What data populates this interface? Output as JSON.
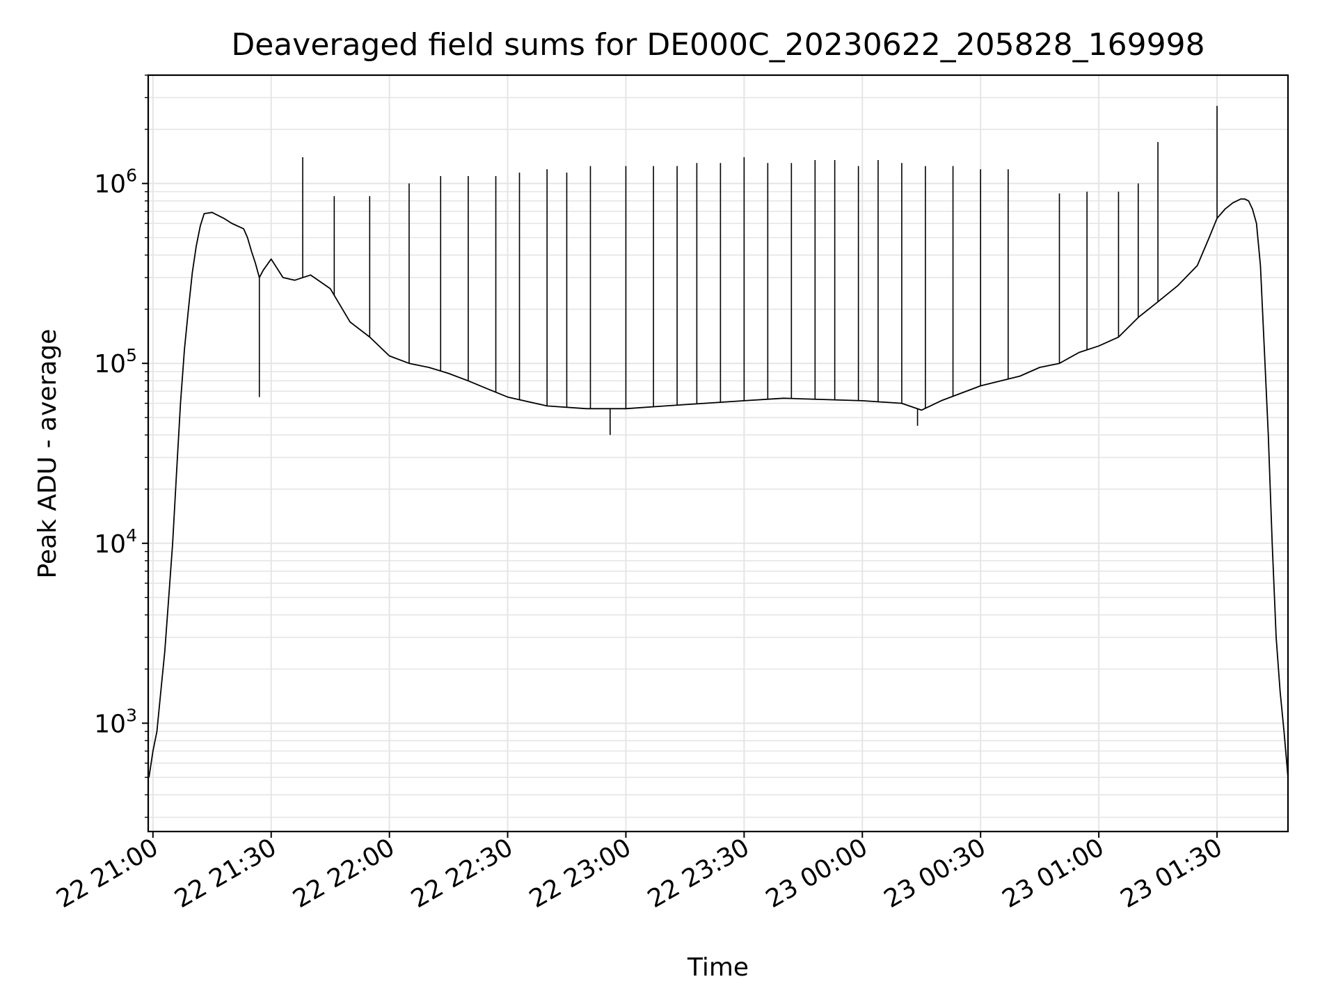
{
  "chart_data": {
    "type": "line",
    "title": "Deaveraged field sums for DE000C_20230622_205828_169998",
    "xlabel": "Time",
    "ylabel": "Peak ADU - average",
    "y_scale": "log",
    "ylim": [
      250,
      4000000
    ],
    "xlim": [
      "2023-06-22 20:58:48",
      "2023-06-23 01:48:00"
    ],
    "grid": true,
    "line_color": "#000000",
    "grid_color": "#e5e5e5",
    "x_ticks": [
      {
        "label": "22 21:00",
        "value": "2023-06-22 21:00"
      },
      {
        "label": "22 21:30",
        "value": "2023-06-22 21:30"
      },
      {
        "label": "22 22:00",
        "value": "2023-06-22 22:00"
      },
      {
        "label": "22 22:30",
        "value": "2023-06-22 22:30"
      },
      {
        "label": "22 23:00",
        "value": "2023-06-22 23:00"
      },
      {
        "label": "22 23:30",
        "value": "2023-06-22 23:30"
      },
      {
        "label": "23 00:00",
        "value": "2023-06-23 00:00"
      },
      {
        "label": "23 00:30",
        "value": "2023-06-23 00:30"
      },
      {
        "label": "23 01:00",
        "value": "2023-06-23 01:00"
      },
      {
        "label": "23 01:30",
        "value": "2023-06-23 01:30"
      }
    ],
    "y_ticks": [
      {
        "base": "10",
        "exp": "3",
        "value": 1000
      },
      {
        "base": "10",
        "exp": "4",
        "value": 10000
      },
      {
        "base": "10",
        "exp": "5",
        "value": 100000
      },
      {
        "base": "10",
        "exp": "6",
        "value": 1000000
      }
    ],
    "series": [
      {
        "x": [
          "2023-06-22 20:59",
          "2023-06-22 21:00",
          "2023-06-22 21:01",
          "2023-06-22 21:02",
          "2023-06-22 21:03",
          "2023-06-22 21:04",
          "2023-06-22 21:05",
          "2023-06-22 21:06",
          "2023-06-22 21:07",
          "2023-06-22 21:08",
          "2023-06-22 21:09",
          "2023-06-22 21:10",
          "2023-06-22 21:11",
          "2023-06-22 21:12",
          "2023-06-22 21:13",
          "2023-06-22 21:15",
          "2023-06-22 21:18",
          "2023-06-22 21:20",
          "2023-06-22 21:23",
          "2023-06-22 21:24",
          "2023-06-22 21:25",
          "2023-06-22 21:26",
          "2023-06-22 21:27",
          "2023-06-22 21:28",
          "2023-06-22 21:30",
          "2023-06-22 21:33",
          "2023-06-22 21:36",
          "2023-06-22 21:40",
          "2023-06-22 21:45",
          "2023-06-22 21:50",
          "2023-06-22 21:55",
          "2023-06-22 22:00",
          "2023-06-22 22:05",
          "2023-06-22 22:10",
          "2023-06-22 22:15",
          "2023-06-22 22:20",
          "2023-06-22 22:25",
          "2023-06-22 22:30",
          "2023-06-22 22:40",
          "2023-06-22 22:50",
          "2023-06-22 23:00",
          "2023-06-22 23:10",
          "2023-06-22 23:20",
          "2023-06-22 23:30",
          "2023-06-22 23:40",
          "2023-06-22 23:50",
          "2023-06-23 00:00",
          "2023-06-23 00:10",
          "2023-06-23 00:15",
          "2023-06-23 00:20",
          "2023-06-23 00:30",
          "2023-06-23 00:40",
          "2023-06-23 00:45",
          "2023-06-23 00:50",
          "2023-06-23 00:55",
          "2023-06-23 01:00",
          "2023-06-23 01:05",
          "2023-06-23 01:10",
          "2023-06-23 01:15",
          "2023-06-23 01:20",
          "2023-06-23 01:25",
          "2023-06-23 01:28",
          "2023-06-23 01:30",
          "2023-06-23 01:32",
          "2023-06-23 01:34",
          "2023-06-23 01:36",
          "2023-06-23 01:37",
          "2023-06-23 01:38",
          "2023-06-23 01:39",
          "2023-06-23 01:40",
          "2023-06-23 01:41",
          "2023-06-23 01:42",
          "2023-06-23 01:43",
          "2023-06-23 01:44",
          "2023-06-23 01:45",
          "2023-06-23 01:46",
          "2023-06-23 01:47",
          "2023-06-23 01:48"
        ],
        "y": [
          500,
          700,
          900,
          1500,
          2500,
          5000,
          10000,
          25000,
          60000,
          120000,
          200000,
          320000,
          450000,
          580000,
          680000,
          690000,
          640000,
          600000,
          560000,
          500000,
          420000,
          360000,
          300000,
          330000,
          380000,
          300000,
          290000,
          310000,
          260000,
          170000,
          140000,
          110000,
          100000,
          95000,
          88000,
          80000,
          72000,
          65000,
          58000,
          56000,
          56000,
          58000,
          60000,
          62000,
          64000,
          63000,
          62000,
          60000,
          55000,
          62000,
          75000,
          85000,
          95000,
          100000,
          115000,
          125000,
          140000,
          180000,
          220000,
          270000,
          350000,
          500000,
          640000,
          720000,
          780000,
          820000,
          820000,
          800000,
          720000,
          600000,
          350000,
          120000,
          40000,
          10000,
          3000,
          1500,
          900,
          500
        ]
      }
    ],
    "spikes": [
      {
        "x": "2023-06-22 21:27",
        "y": 65000
      },
      {
        "x": "2023-06-22 21:38",
        "y": 1400000
      },
      {
        "x": "2023-06-22 21:46",
        "y": 850000
      },
      {
        "x": "2023-06-22 21:55",
        "y": 850000
      },
      {
        "x": "2023-06-22 22:05",
        "y": 1000000
      },
      {
        "x": "2023-06-22 22:13",
        "y": 1100000
      },
      {
        "x": "2023-06-22 22:20",
        "y": 1100000
      },
      {
        "x": "2023-06-22 22:27",
        "y": 1100000
      },
      {
        "x": "2023-06-22 22:33",
        "y": 1150000
      },
      {
        "x": "2023-06-22 22:40",
        "y": 1200000
      },
      {
        "x": "2023-06-22 22:45",
        "y": 1150000
      },
      {
        "x": "2023-06-22 22:51",
        "y": 1250000
      },
      {
        "x": "2023-06-22 22:56",
        "y": 40000
      },
      {
        "x": "2023-06-22 23:00",
        "y": 1250000
      },
      {
        "x": "2023-06-22 23:07",
        "y": 1250000
      },
      {
        "x": "2023-06-22 23:13",
        "y": 1250000
      },
      {
        "x": "2023-06-22 23:18",
        "y": 1300000
      },
      {
        "x": "2023-06-22 23:24",
        "y": 1300000
      },
      {
        "x": "2023-06-22 23:30",
        "y": 1400000
      },
      {
        "x": "2023-06-22 23:36",
        "y": 1300000
      },
      {
        "x": "2023-06-22 23:42",
        "y": 1300000
      },
      {
        "x": "2023-06-22 23:48",
        "y": 1350000
      },
      {
        "x": "2023-06-22 23:53",
        "y": 1350000
      },
      {
        "x": "2023-06-22 23:59",
        "y": 1250000
      },
      {
        "x": "2023-06-23 00:04",
        "y": 1350000
      },
      {
        "x": "2023-06-23 00:10",
        "y": 1300000
      },
      {
        "x": "2023-06-23 00:14",
        "y": 45000
      },
      {
        "x": "2023-06-23 00:16",
        "y": 1250000
      },
      {
        "x": "2023-06-23 00:23",
        "y": 1250000
      },
      {
        "x": "2023-06-23 00:30",
        "y": 1200000
      },
      {
        "x": "2023-06-23 00:37",
        "y": 1200000
      },
      {
        "x": "2023-06-23 00:50",
        "y": 880000
      },
      {
        "x": "2023-06-23 00:57",
        "y": 900000
      },
      {
        "x": "2023-06-23 01:05",
        "y": 900000
      },
      {
        "x": "2023-06-23 01:10",
        "y": 1000000
      },
      {
        "x": "2023-06-23 01:15",
        "y": 1700000
      },
      {
        "x": "2023-06-23 01:30",
        "y": 2700000
      }
    ]
  }
}
